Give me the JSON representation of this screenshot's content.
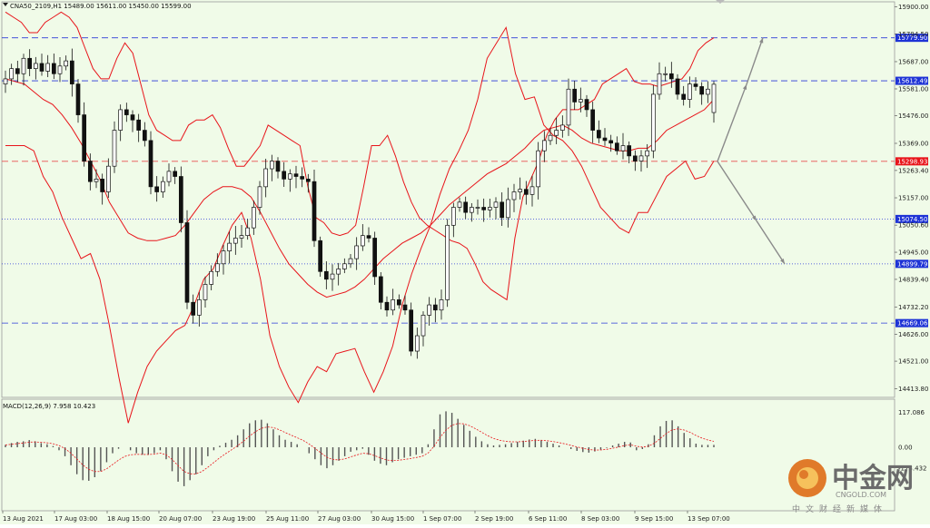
{
  "header": {
    "text": "CNA50_2109,H1  15489.00  15611.00  15450.00  15599.00"
  },
  "watermark": {
    "brand": "中金网",
    "domain": "CNGOLD.COM",
    "tagline": "中文财经新媒体"
  },
  "macd": {
    "header": "MACD(12,26,9)  7.958  10.423"
  },
  "colors": {
    "candle": "#111111",
    "band": "#e8141a",
    "level_blue": "#2a3ad8",
    "level_red": "#e85050",
    "arrow": "#8a8a8a",
    "hist": "#555555",
    "signal": "#e8141a",
    "grid": "#cfe7c7",
    "label_blue_bg": "#1e33d6",
    "label_red_bg": "#e8141a"
  },
  "chart_data": [
    {
      "type": "candlestick",
      "symbol": "CNA50_2109",
      "timeframe": "H1",
      "ohlc_last": {
        "open": 15489.0,
        "high": 15611.0,
        "low": 15450.0,
        "close": 15599.0
      },
      "ylim": [
        14380,
        15920
      ],
      "price_ticks": [
        "15900.00",
        "15794.50",
        "15687.00",
        "15581.00",
        "15476.00",
        "15369.00",
        "15263.40",
        "15157.00",
        "15050.60",
        "14945.00",
        "14839.40",
        "14732.20",
        "14626.00",
        "14521.00",
        "14413.80"
      ],
      "x_labels": [
        "13 Aug 2021",
        "17 Aug 03:00",
        "18 Aug 15:00",
        "20 Aug 07:00",
        "23 Aug 19:00",
        "25 Aug 11:00",
        "27 Aug 03:00",
        "30 Aug 15:00",
        "1 Sep 07:00",
        "2 Sep 19:00",
        "6 Sep 11:00",
        "8 Sep 03:00",
        "9 Sep 15:00",
        "13 Sep 07:00"
      ],
      "levels": [
        {
          "label": "15779.90",
          "value": 15779.9,
          "color": "blue",
          "style": "dashed"
        },
        {
          "label": "15612.49",
          "value": 15612.49,
          "color": "blue",
          "style": "dashed"
        },
        {
          "label": "15298.93",
          "value": 15298.93,
          "color": "red",
          "style": "dashed"
        },
        {
          "label": "15074.50",
          "value": 15074.5,
          "color": "blue",
          "style": "dotted"
        },
        {
          "label": "14899.79",
          "value": 14899.79,
          "color": "blue",
          "style": "dotted"
        },
        {
          "label": "14669.06",
          "value": 14669.06,
          "color": "blue",
          "style": "dashed"
        }
      ],
      "closes": [
        15620,
        15660,
        15640,
        15700,
        15660,
        15680,
        15650,
        15680,
        15640,
        15670,
        15690,
        15600,
        15480,
        15300,
        15220,
        15230,
        15180,
        15280,
        15420,
        15500,
        15480,
        15460,
        15420,
        15380,
        15200,
        15180,
        15220,
        15260,
        15240,
        15060,
        14750,
        14700,
        14760,
        14820,
        14870,
        14900,
        14950,
        14980,
        15000,
        15010,
        15040,
        15120,
        15200,
        15270,
        15300,
        15260,
        15230,
        15250,
        15240,
        15230,
        15220,
        14990,
        14870,
        14840,
        14860,
        14880,
        14900,
        14920,
        14970,
        15010,
        15000,
        14850,
        14750,
        14720,
        14760,
        14740,
        14720,
        14560,
        14620,
        14700,
        14740,
        14720,
        14760,
        15050,
        15120,
        15140,
        15100,
        15120,
        15120,
        15110,
        15120,
        15140,
        15080,
        15150,
        15180,
        15190,
        15170,
        15200,
        15340,
        15380,
        15400,
        15420,
        15440,
        15580,
        15530,
        15540,
        15500,
        15420,
        15390,
        15380,
        15370,
        15340,
        15360,
        15320,
        15300,
        15320,
        15340,
        15560,
        15640,
        15640,
        15620,
        15560,
        15540,
        15600,
        15590,
        15560,
        15580,
        15599
      ],
      "bands_upper": [
        15880,
        15860,
        15840,
        15800,
        15800,
        15840,
        15860,
        15880,
        15860,
        15820,
        15740,
        15660,
        15620,
        15620,
        15700,
        15760,
        15720,
        15600,
        15480,
        15420,
        15400,
        15380,
        15380,
        15440,
        15460,
        15460,
        15480,
        15430,
        15350,
        15280,
        15280,
        15320,
        15360,
        15440,
        15420,
        15400,
        15380,
        15360,
        15200,
        15080,
        15060,
        15020,
        15010,
        15020,
        15050,
        15200,
        15360,
        15360,
        15400,
        15320,
        15220,
        15140,
        15080,
        15050,
        15030,
        15010,
        14990,
        14980,
        14960,
        14900,
        14830,
        14800,
        14780,
        14760,
        15000,
        15160,
        15230,
        15300,
        15400,
        15460,
        15500,
        15500,
        15500,
        15520,
        15540,
        15600,
        15620,
        15640,
        15660,
        15610,
        15600,
        15600,
        15590,
        15600,
        15610,
        15620,
        15660,
        15730,
        15760,
        15780
      ],
      "bands_middle": [
        15620,
        15610,
        15600,
        15570,
        15540,
        15520,
        15480,
        15430,
        15370,
        15300,
        15230,
        15140,
        15080,
        15020,
        15000,
        14990,
        14990,
        15000,
        15010,
        15050,
        15100,
        15150,
        15180,
        15200,
        15200,
        15190,
        15160,
        15100,
        15030,
        14960,
        14900,
        14860,
        14820,
        14790,
        14770,
        14780,
        14790,
        14810,
        14840,
        14880,
        14920,
        14950,
        14980,
        15000,
        15020,
        15050,
        15090,
        15130,
        15160,
        15190,
        15220,
        15250,
        15270,
        15290,
        15320,
        15350,
        15390,
        15420,
        15430,
        15440,
        15420,
        15390,
        15370,
        15360,
        15350,
        15340,
        15340,
        15350,
        15350,
        15380,
        15420,
        15440,
        15460,
        15480,
        15500,
        15540
      ],
      "macd_hist": [
        8,
        14,
        18,
        20,
        24,
        20,
        14,
        10,
        4,
        -10,
        -30,
        -60,
        -90,
        -110,
        -112,
        -100,
        -80,
        -50,
        -20,
        -5,
        0,
        -10,
        -20,
        -25,
        -25,
        -20,
        -10,
        -40,
        -80,
        -115,
        -130,
        -110,
        -90,
        -60,
        -30,
        -10,
        5,
        15,
        25,
        40,
        60,
        80,
        90,
        92,
        80,
        60,
        40,
        25,
        18,
        10,
        0,
        -20,
        -40,
        -60,
        -70,
        -60,
        -45,
        -30,
        -15,
        -10,
        -5,
        -25,
        -45,
        -55,
        -60,
        -50,
        -40,
        -35,
        -30,
        -25,
        -20,
        10,
        60,
        110,
        120,
        115,
        95,
        75,
        55,
        35,
        20,
        10,
        6,
        8,
        10,
        14,
        18,
        22,
        26,
        28,
        24,
        18,
        12,
        6,
        0,
        -6,
        -12,
        -16,
        -18,
        -14,
        -8,
        -2,
        6,
        12,
        18,
        16,
        -10,
        -6,
        10,
        40,
        70,
        88,
        90,
        70,
        48,
        30,
        12,
        8,
        8,
        7.958
      ]
    }
  ]
}
